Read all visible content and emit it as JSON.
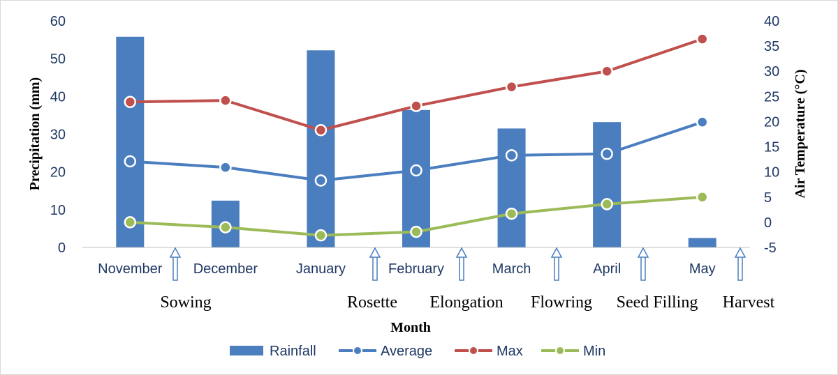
{
  "chart_data": {
    "type": "bar+line",
    "categories": [
      "November",
      "December",
      "January",
      "February",
      "March",
      "April",
      "May"
    ],
    "xlabel": "Month",
    "ylabel_left": "Precipitation (mm)",
    "ylabel_right": "Air Temperature (°C)",
    "ylim_left": [
      0,
      60
    ],
    "ylim_right": [
      -5,
      40
    ],
    "yticks_left": [
      "0",
      "10",
      "20",
      "30",
      "40",
      "50",
      "60"
    ],
    "yticks_right": [
      "-5",
      "0",
      "5",
      "10",
      "15",
      "20",
      "25",
      "30",
      "35",
      "40"
    ],
    "series": [
      {
        "name": "Rainfall",
        "kind": "bar",
        "axis": "left",
        "color": "#4a7ebf",
        "values": [
          55.8,
          12.4,
          52.2,
          36.4,
          31.5,
          33.2,
          2.5
        ]
      },
      {
        "name": "Average",
        "kind": "line",
        "axis": "right",
        "color": "#4a7ebf",
        "values": [
          12.1,
          10.9,
          8.3,
          10.3,
          13.3,
          13.6,
          19.9
        ]
      },
      {
        "name": "Max",
        "kind": "line",
        "axis": "right",
        "color": "#c0504d",
        "values": [
          23.9,
          24.2,
          18.3,
          23.1,
          26.9,
          30.0,
          36.4
        ]
      },
      {
        "name": "Min",
        "kind": "line",
        "axis": "right",
        "color": "#9bbb59",
        "values": [
          0.0,
          -1.0,
          -2.6,
          -1.9,
          1.7,
          3.6,
          5.0
        ]
      }
    ],
    "stages": [
      {
        "label": "Sowing",
        "after_category": 0
      },
      {
        "label": "Rosette",
        "after_category": 2
      },
      {
        "label": "Elongation",
        "after_category": 3
      },
      {
        "label": "Flowring",
        "after_category": 4
      },
      {
        "label": "Seed Filling",
        "after_category": 5
      },
      {
        "label": "Harvest",
        "after_category": 6
      }
    ]
  }
}
